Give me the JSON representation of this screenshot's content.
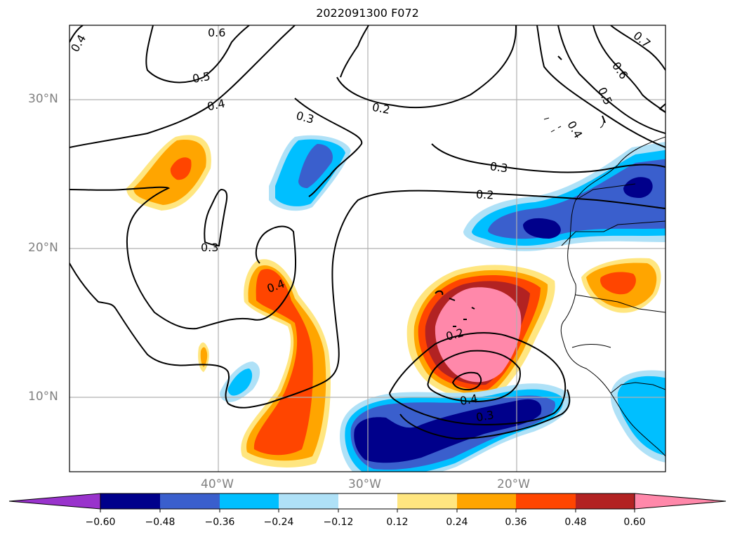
{
  "title": "2022091300 F072",
  "map": {
    "extent": {
      "lon_min": -50,
      "lon_max": -10,
      "lat_min": 5,
      "lat_max": 35
    },
    "gridlines": true,
    "lat_labels": [
      {
        "lat": 30,
        "text": "30°N"
      },
      {
        "lat": 20,
        "text": "20°N"
      },
      {
        "lat": 10,
        "text": "10°N"
      }
    ],
    "lon_labels": [
      {
        "lon": -40,
        "text": "40°W"
      },
      {
        "lon": -30,
        "text": "30°W"
      },
      {
        "lon": -20,
        "text": "20°W"
      }
    ],
    "contour_color": "#000000",
    "contour_labels": [
      "0.4",
      "0.6",
      "0.5",
      "0.4",
      "0.3",
      "0.2",
      "0.3",
      "0.2",
      "0.3",
      "0.4",
      "0.2",
      "0.4",
      "0.3",
      "0.7",
      "0.6",
      "0.5",
      "0.4"
    ]
  },
  "colorbar": {
    "extend": "both",
    "colors": [
      "#9933cc",
      "#00008b",
      "#3a5fcd",
      "#00bfff",
      "#afe1f7",
      "#ffffff",
      "#ffe680",
      "#ffa500",
      "#ff4500",
      "#b22222",
      "#ff88aa"
    ],
    "ticks": [
      "−0.60",
      "−0.48",
      "−0.36",
      "−0.24",
      "−0.12",
      "0.12",
      "0.24",
      "0.36",
      "0.48",
      "0.60"
    ]
  }
}
